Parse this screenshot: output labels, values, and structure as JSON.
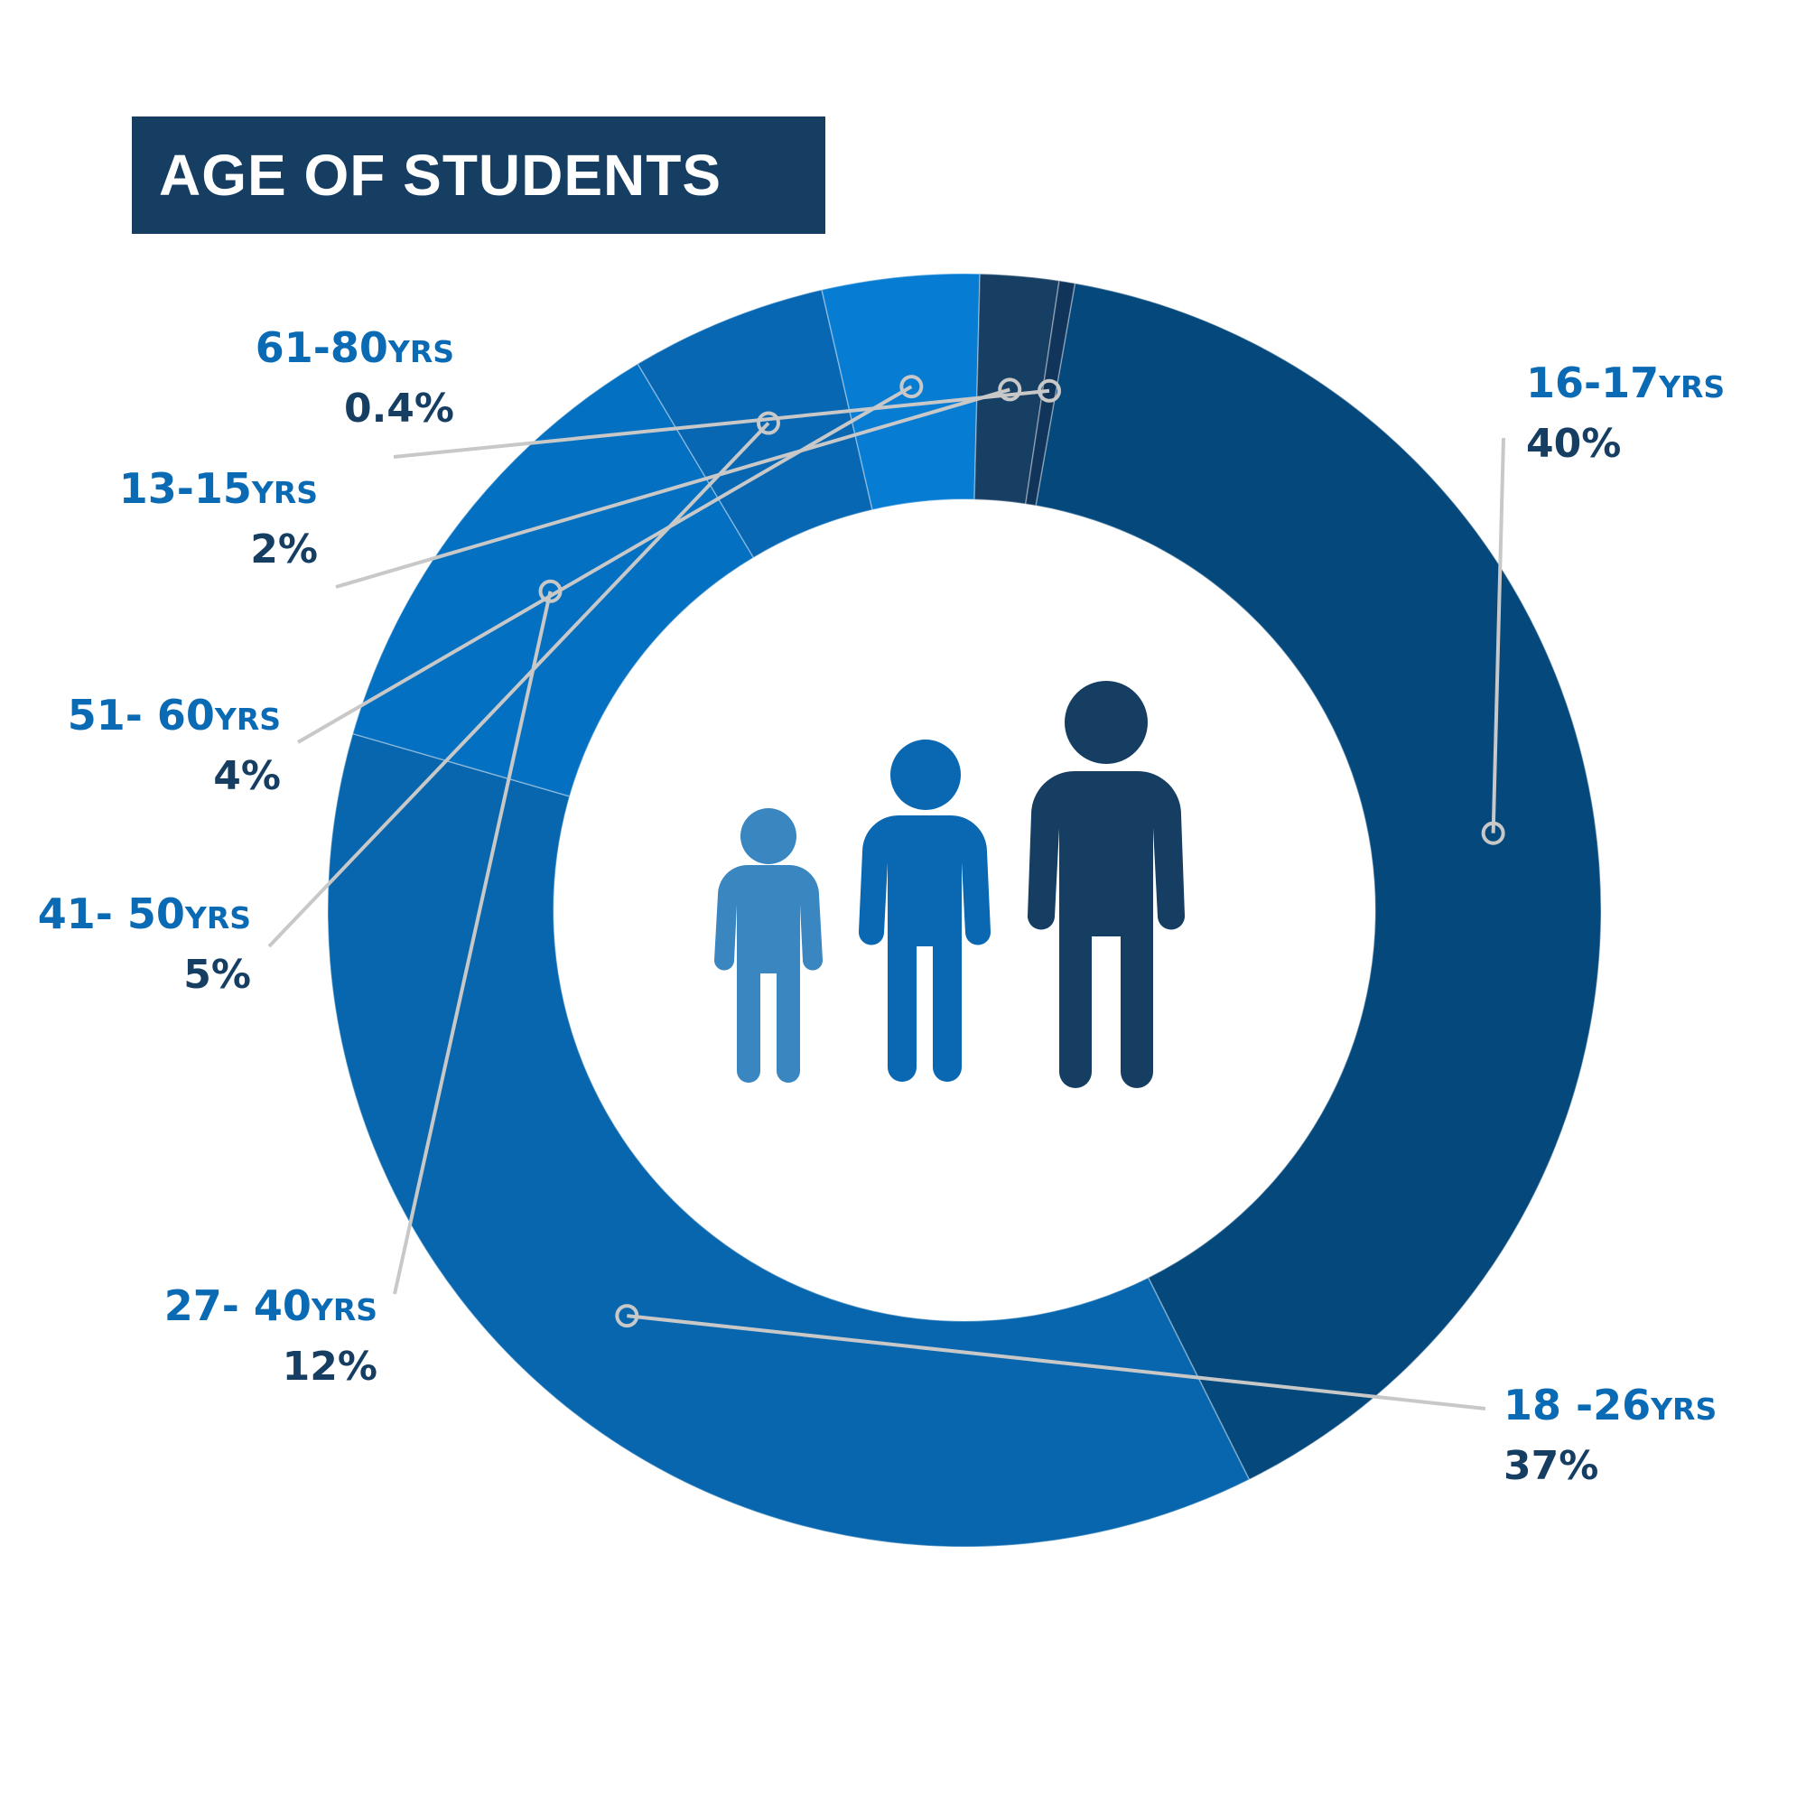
{
  "title": "AGE OF STUDENTS",
  "colors": {
    "title_bg": "#153e62",
    "label_name": "#0a6ab4",
    "label_pct": "#153e62",
    "leader": "#c8c8c8",
    "child_icon": "#3a86c0",
    "youth_icon": "#0a67b1",
    "adult_icon": "#153e62"
  },
  "icons": [
    "child-icon",
    "youth-icon",
    "adult-icon"
  ],
  "chart_data": {
    "type": "pie",
    "variant": "donut",
    "title": "AGE OF STUDENTS",
    "slices": [
      {
        "label": "16-17",
        "unit": "YRS",
        "value": 40,
        "display": "40%",
        "color": "#05487b"
      },
      {
        "label": "18 -26",
        "unit": "YRS",
        "value": 37,
        "display": "37%",
        "color": "#0766ad"
      },
      {
        "label": "27- 40",
        "unit": "YRS",
        "value": 12,
        "display": "12%",
        "color": "#0470c1"
      },
      {
        "label": "41- 50",
        "unit": "YRS",
        "value": 5,
        "display": "5%",
        "color": "#0767b3"
      },
      {
        "label": "51- 60",
        "unit": "YRS",
        "value": 4,
        "display": "4%",
        "color": "#077cd3"
      },
      {
        "label": "13-15",
        "unit": "YRS",
        "value": 2,
        "display": "2%",
        "color": "#173f64"
      },
      {
        "label": "61-80",
        "unit": "YRS",
        "value": 0.4,
        "display": "0.4%",
        "color": "#11345a"
      }
    ]
  }
}
